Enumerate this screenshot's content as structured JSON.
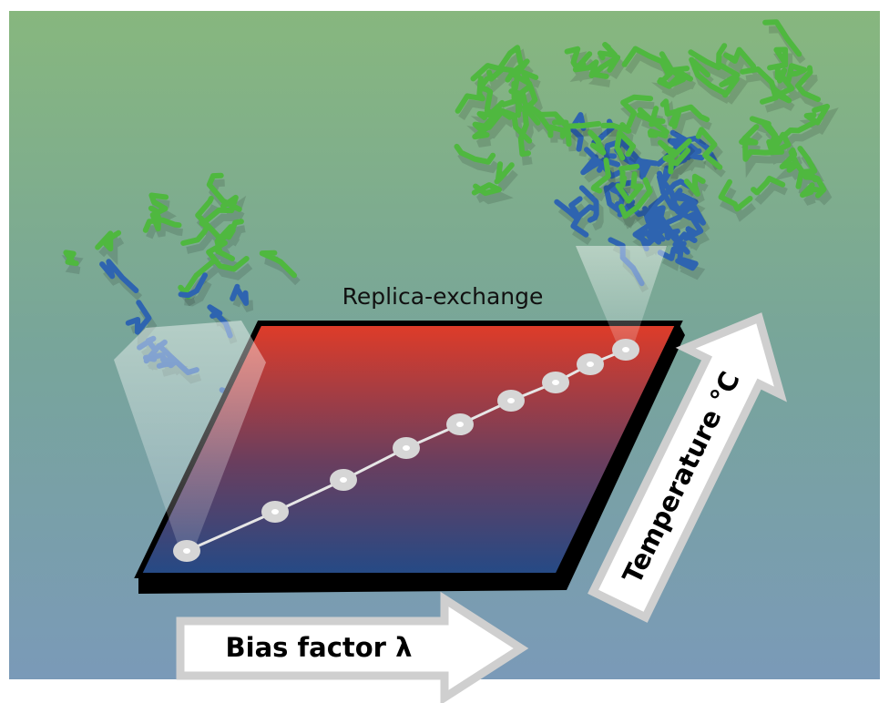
{
  "labels": {
    "title": "Replica-exchange",
    "x_axis": "Bias factor λ",
    "y_axis": "Temperature °C"
  }
}
